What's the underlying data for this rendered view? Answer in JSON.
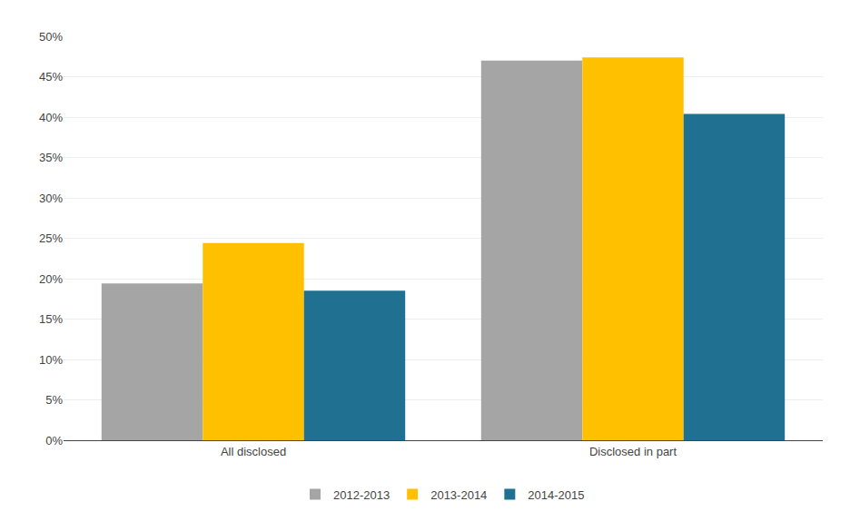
{
  "chart_data": {
    "type": "bar",
    "categories": [
      "All disclosed",
      "Disclosed in part"
    ],
    "series": [
      {
        "name": "2012-2013",
        "color": "#a5a5a5",
        "values": [
          0.194,
          0.47
        ]
      },
      {
        "name": "2013-2014",
        "color": "#ffc000",
        "values": [
          0.244,
          0.474
        ]
      },
      {
        "name": "2014-2015",
        "color": "#1f7091",
        "values": [
          0.185,
          0.404
        ]
      }
    ],
    "ylim": [
      0,
      0.5
    ],
    "yticks": [
      {
        "value": 0.0,
        "label": "0%"
      },
      {
        "value": 0.05,
        "label": "5%"
      },
      {
        "value": 0.1,
        "label": "10%"
      },
      {
        "value": 0.15,
        "label": "15%"
      },
      {
        "value": 0.2,
        "label": "20%"
      },
      {
        "value": 0.25,
        "label": "25%"
      },
      {
        "value": 0.3,
        "label": "30%"
      },
      {
        "value": 0.35,
        "label": "35%"
      },
      {
        "value": 0.4,
        "label": "40%"
      },
      {
        "value": 0.45,
        "label": "45%"
      },
      {
        "value": 0.5,
        "label": "50%"
      }
    ],
    "grid": true,
    "legend": "bottom"
  }
}
